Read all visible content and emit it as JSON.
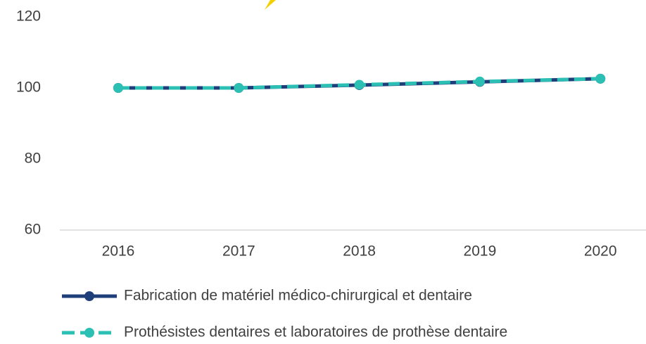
{
  "chart_data": {
    "type": "line",
    "categories": [
      "2016",
      "2017",
      "2018",
      "2019",
      "2020"
    ],
    "series": [
      {
        "name": "Fabrication de matériel médico-chirurgical et dentaire",
        "color": "#1f3f7a",
        "values": [
          100,
          100,
          100.8,
          101.7,
          102.6
        ]
      },
      {
        "name": "Prothésistes dentaires et laboratoires de prothèse dentaire",
        "color": "#2cc0b4",
        "values": [
          100,
          100,
          100.9,
          101.8,
          102.6
        ]
      }
    ],
    "ylim": [
      60,
      120
    ],
    "yticks": [
      60,
      80,
      100,
      120
    ],
    "grid": false
  }
}
